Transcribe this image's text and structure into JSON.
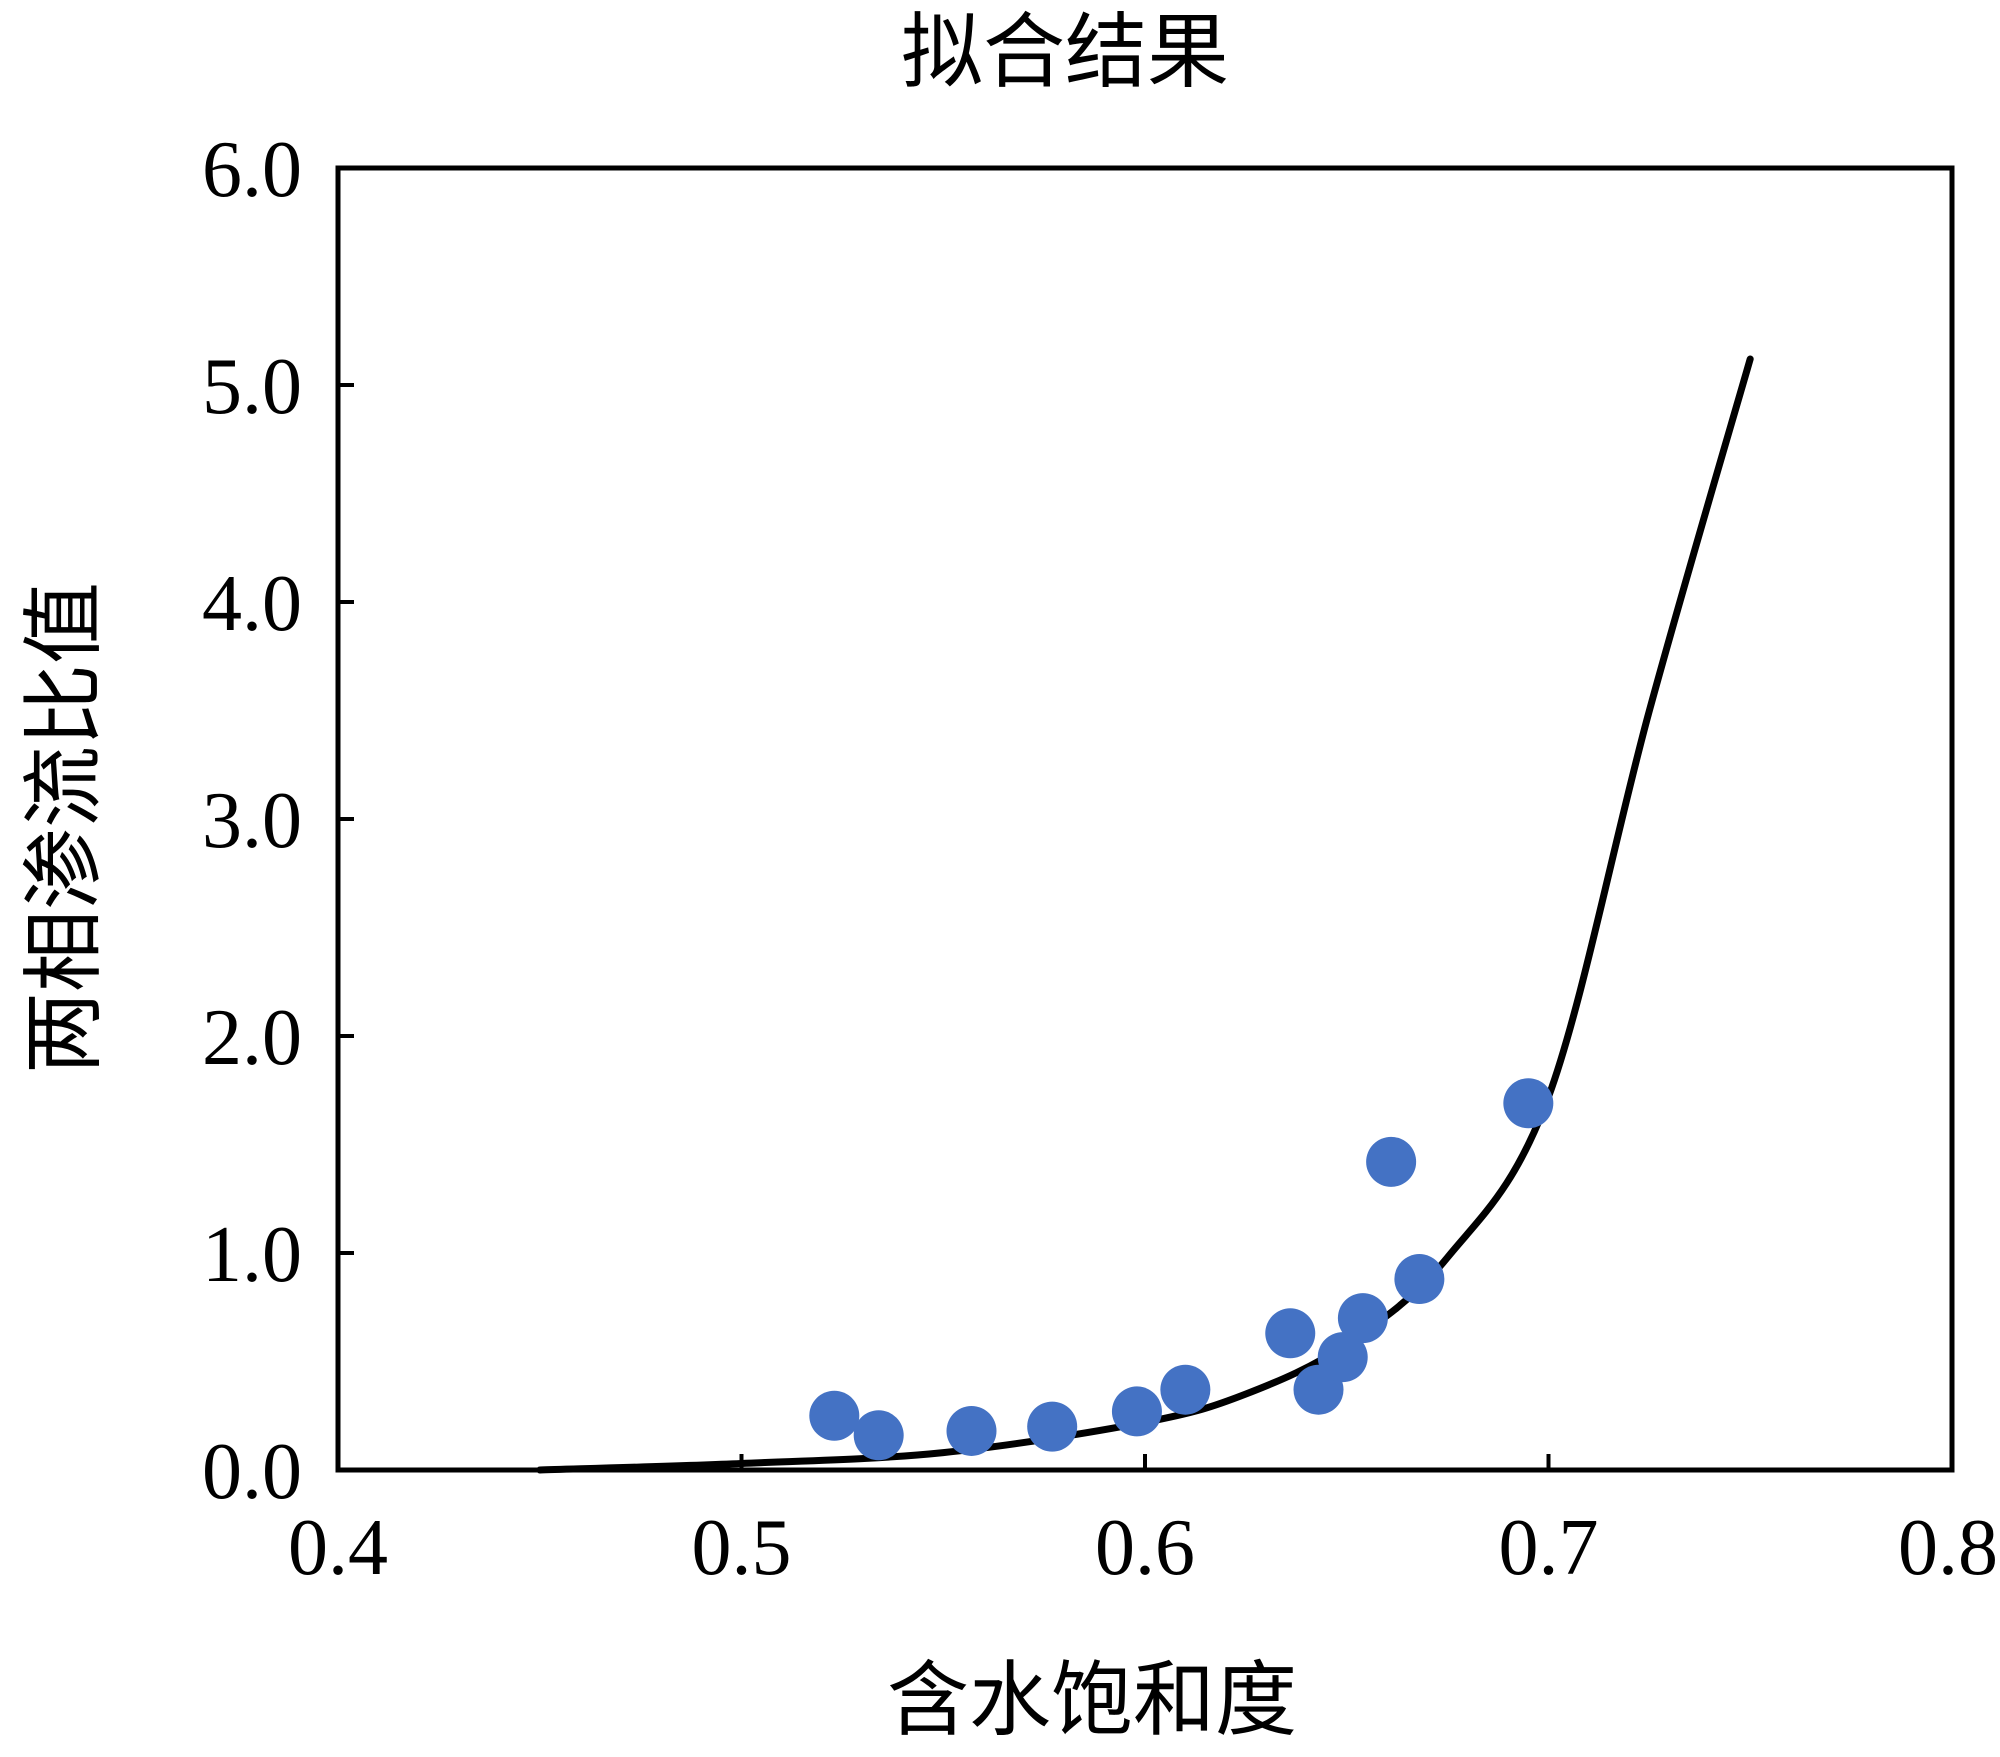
{
  "chart_data": {
    "type": "scatter",
    "title": "拟合结果",
    "xlabel": "含水饱和度",
    "ylabel": "两相渗流比值",
    "xlim": [
      0.4,
      0.8
    ],
    "ylim": [
      0.0,
      6.0
    ],
    "xticks": [
      "0.4",
      "0.5",
      "0.6",
      "0.7",
      "0.8"
    ],
    "yticks": [
      "0.0",
      "1.0",
      "2.0",
      "3.0",
      "4.0",
      "5.0",
      "6.0"
    ],
    "grid": false,
    "legend": "none",
    "series": [
      {
        "type": "scatter",
        "color": "#4472C4",
        "x": [
          0.523,
          0.534,
          0.557,
          0.577,
          0.598,
          0.61,
          0.636,
          0.643,
          0.649,
          0.654,
          0.661,
          0.668,
          0.695
        ],
        "y": [
          0.25,
          0.16,
          0.18,
          0.2,
          0.27,
          0.37,
          0.63,
          0.37,
          0.52,
          0.7,
          1.42,
          0.88,
          1.69
        ]
      },
      {
        "type": "line",
        "color": "#000000",
        "x": [
          0.45,
          0.5,
          0.55,
          0.6,
          0.625,
          0.65,
          0.675,
          0.7,
          0.725,
          0.75
        ],
        "y": [
          0.0,
          0.03,
          0.08,
          0.22,
          0.35,
          0.58,
          0.98,
          1.72,
          3.5,
          5.12
        ]
      }
    ]
  }
}
